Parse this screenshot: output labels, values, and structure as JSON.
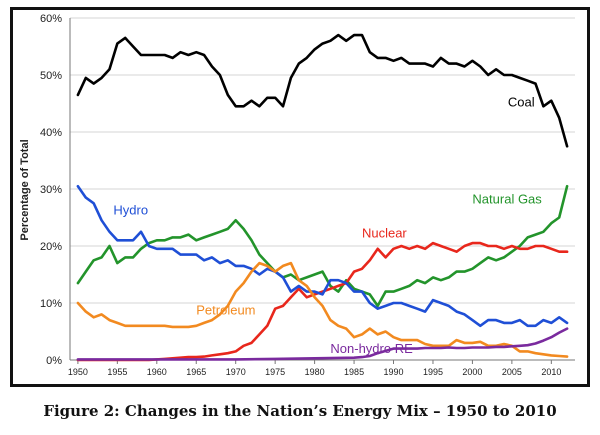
{
  "caption": "Figure 2: Changes in the Nation’s Energy Mix – 1950 to 2010",
  "chart_data": {
    "type": "line",
    "title": "",
    "xlabel": "",
    "ylabel": "Percentage of Total",
    "xlim": [
      1949,
      2013
    ],
    "ylim": [
      0,
      60
    ],
    "x_ticks": [
      1950,
      1955,
      1960,
      1965,
      1970,
      1975,
      1980,
      1985,
      1990,
      1995,
      2000,
      2005,
      2010
    ],
    "y_ticks": [
      0,
      10,
      20,
      30,
      40,
      50,
      60
    ],
    "y_tick_labels": [
      "0%",
      "10%",
      "20%",
      "30%",
      "40%",
      "50%",
      "60%"
    ],
    "grid": "horizontal",
    "legend": "inline labels",
    "series": [
      {
        "name": "Coal",
        "color": "#000000",
        "x": [
          1950,
          1951,
          1952,
          1953,
          1954,
          1955,
          1956,
          1957,
          1958,
          1959,
          1960,
          1961,
          1962,
          1963,
          1964,
          1965,
          1966,
          1967,
          1968,
          1969,
          1970,
          1971,
          1972,
          1973,
          1974,
          1975,
          1976,
          1977,
          1978,
          1979,
          1980,
          1981,
          1982,
          1983,
          1984,
          1985,
          1986,
          1987,
          1988,
          1989,
          1990,
          1991,
          1992,
          1993,
          1994,
          1995,
          1996,
          1997,
          1998,
          1999,
          2000,
          2001,
          2002,
          2003,
          2004,
          2005,
          2006,
          2007,
          2008,
          2009,
          2010,
          2011,
          2012
        ],
        "values": [
          46.5,
          49.5,
          48.5,
          49.5,
          51,
          55.5,
          56.5,
          55,
          53.5,
          53.5,
          53.5,
          53.5,
          53,
          54,
          53.5,
          54,
          53.5,
          51.5,
          50,
          46.5,
          44.5,
          44.5,
          45.5,
          44.5,
          46,
          46,
          44.5,
          49.5,
          52,
          53,
          54.5,
          55.5,
          56,
          57,
          56,
          57,
          57,
          54,
          53,
          53,
          52.5,
          53,
          52,
          52,
          52,
          51.5,
          53,
          52,
          52,
          51.5,
          52.5,
          51.5,
          50,
          51,
          50,
          50,
          49.5,
          49,
          48.5,
          44.5,
          45.5,
          42.5,
          37.5
        ]
      },
      {
        "name": "Natural Gas",
        "color": "#23942b",
        "x": [
          1950,
          1951,
          1952,
          1953,
          1954,
          1955,
          1956,
          1957,
          1958,
          1959,
          1960,
          1961,
          1962,
          1963,
          1964,
          1965,
          1966,
          1967,
          1968,
          1969,
          1970,
          1971,
          1972,
          1973,
          1974,
          1975,
          1976,
          1977,
          1978,
          1979,
          1980,
          1981,
          1982,
          1983,
          1984,
          1985,
          1986,
          1987,
          1988,
          1989,
          1990,
          1991,
          1992,
          1993,
          1994,
          1995,
          1996,
          1997,
          1998,
          1999,
          2000,
          2001,
          2002,
          2003,
          2004,
          2005,
          2006,
          2007,
          2008,
          2009,
          2010,
          2011,
          2012
        ],
        "values": [
          13.5,
          15.5,
          17.5,
          18,
          20,
          17,
          18,
          18,
          19.5,
          20.5,
          21,
          21,
          21.5,
          21.5,
          22,
          21,
          21.5,
          22,
          22.5,
          23,
          24.5,
          23,
          21,
          18.5,
          17,
          15.5,
          14.5,
          15,
          14,
          14.5,
          15,
          15.5,
          13,
          12,
          14,
          12.5,
          12,
          11.5,
          9.5,
          12,
          12,
          12.5,
          13,
          14,
          13.5,
          14.5,
          14,
          14.5,
          15.5,
          15.5,
          16,
          17,
          18,
          17.5,
          18,
          19,
          20,
          21.5,
          22,
          22.5,
          24,
          25,
          30.5
        ]
      },
      {
        "name": "Nuclear",
        "color": "#e8271c",
        "x": [
          1950,
          1955,
          1956,
          1957,
          1958,
          1959,
          1960,
          1961,
          1962,
          1963,
          1964,
          1965,
          1966,
          1967,
          1968,
          1969,
          1970,
          1971,
          1972,
          1973,
          1974,
          1975,
          1976,
          1977,
          1978,
          1979,
          1980,
          1981,
          1982,
          1983,
          1984,
          1985,
          1986,
          1987,
          1988,
          1989,
          1990,
          1991,
          1992,
          1993,
          1994,
          1995,
          1996,
          1997,
          1998,
          1999,
          2000,
          2001,
          2002,
          2003,
          2004,
          2005,
          2006,
          2007,
          2008,
          2009,
          2010,
          2011,
          2012
        ],
        "values": [
          0,
          0,
          0,
          0,
          0,
          0,
          0.1,
          0.2,
          0.3,
          0.4,
          0.5,
          0.5,
          0.6,
          0.8,
          1,
          1.2,
          1.5,
          2.5,
          3,
          4.5,
          6,
          9,
          9.5,
          11,
          12.5,
          11,
          11.5,
          12,
          12.5,
          13,
          13.5,
          15.5,
          16,
          17.5,
          19.5,
          18,
          19.5,
          20,
          19.5,
          20,
          19.5,
          20.5,
          20,
          19.5,
          19,
          20,
          20.5,
          20.5,
          20,
          20,
          19.5,
          20,
          19.5,
          19.5,
          20,
          20,
          19.5,
          19,
          19
        ]
      },
      {
        "name": "Hydro",
        "color": "#1f4fd6",
        "x": [
          1950,
          1951,
          1952,
          1953,
          1954,
          1955,
          1956,
          1957,
          1958,
          1959,
          1960,
          1961,
          1962,
          1963,
          1964,
          1965,
          1966,
          1967,
          1968,
          1969,
          1970,
          1971,
          1972,
          1973,
          1974,
          1975,
          1976,
          1977,
          1978,
          1979,
          1980,
          1981,
          1982,
          1983,
          1984,
          1985,
          1986,
          1987,
          1988,
          1989,
          1990,
          1991,
          1992,
          1993,
          1994,
          1995,
          1996,
          1997,
          1998,
          1999,
          2000,
          2001,
          2002,
          2003,
          2004,
          2005,
          2006,
          2007,
          2008,
          2009,
          2010,
          2011,
          2012
        ],
        "values": [
          30.5,
          28.5,
          27.5,
          24.5,
          22.5,
          21,
          21,
          21,
          22.5,
          20,
          19.5,
          19.5,
          19.5,
          18.5,
          18.5,
          18.5,
          17.5,
          18,
          17,
          17.5,
          16.5,
          16.5,
          16,
          15,
          16,
          15.5,
          14.5,
          12,
          13,
          12,
          12,
          11.5,
          14,
          14,
          13.5,
          12,
          12,
          10,
          9,
          9.5,
          10,
          10,
          9.5,
          9,
          8.5,
          10.5,
          10,
          9.5,
          8.5,
          8,
          7,
          6,
          7,
          7,
          6.5,
          6.5,
          7,
          6,
          6,
          7,
          6.5,
          7.5,
          6.5
        ]
      },
      {
        "name": "Petroleum",
        "color": "#f28a20",
        "x": [
          1950,
          1951,
          1952,
          1953,
          1954,
          1955,
          1956,
          1957,
          1958,
          1959,
          1960,
          1961,
          1962,
          1963,
          1964,
          1965,
          1966,
          1967,
          1968,
          1969,
          1970,
          1971,
          1972,
          1973,
          1974,
          1975,
          1976,
          1977,
          1978,
          1979,
          1980,
          1981,
          1982,
          1983,
          1984,
          1985,
          1986,
          1987,
          1988,
          1989,
          1990,
          1991,
          1992,
          1993,
          1994,
          1995,
          1996,
          1997,
          1998,
          1999,
          2000,
          2001,
          2002,
          2003,
          2004,
          2005,
          2006,
          2007,
          2008,
          2009,
          2010,
          2011,
          2012
        ],
        "values": [
          10,
          8.5,
          7.5,
          8,
          7,
          6.5,
          6,
          6,
          6,
          6,
          6,
          6,
          5.8,
          5.8,
          5.8,
          6,
          6.5,
          7,
          8,
          9.5,
          12,
          13.5,
          15.5,
          17,
          16.5,
          15.5,
          16.5,
          17,
          14,
          13,
          11,
          9.5,
          7,
          6,
          5.5,
          4,
          4.5,
          5.5,
          4.5,
          5,
          4,
          3.5,
          3.5,
          3.5,
          2.8,
          2.5,
          2.5,
          2.5,
          3.5,
          3,
          3,
          3.2,
          2.5,
          2.5,
          2.8,
          2.5,
          1.5,
          1.5,
          1.2,
          1,
          0.8,
          0.7,
          0.6
        ]
      },
      {
        "name": "Non-hydro RE",
        "color": "#7a2a9e",
        "x": [
          1950,
          1970,
          1975,
          1980,
          1985,
          1986,
          1987,
          1988,
          1989,
          1990,
          1991,
          1992,
          1993,
          1994,
          1995,
          1996,
          1997,
          1998,
          1999,
          2000,
          2001,
          2002,
          2003,
          2004,
          2005,
          2006,
          2007,
          2008,
          2009,
          2010,
          2011,
          2012
        ],
        "values": [
          0.1,
          0.1,
          0.2,
          0.3,
          0.4,
          0.5,
          0.7,
          1.2,
          1.6,
          2,
          2,
          2,
          2,
          2.1,
          2.1,
          2.1,
          2.2,
          2.1,
          2.1,
          2.2,
          2.2,
          2.2,
          2.3,
          2.3,
          2.4,
          2.5,
          2.6,
          2.9,
          3.4,
          4,
          4.8,
          5.5
        ]
      }
    ],
    "annotations": [
      {
        "text": "Coal",
        "x": 2004.5,
        "y": 44.5,
        "color": "#000000"
      },
      {
        "text": "Natural Gas",
        "x": 2000,
        "y": 27.5,
        "color": "#23942b"
      },
      {
        "text": "Nuclear",
        "x": 1986,
        "y": 21.5,
        "color": "#e8271c"
      },
      {
        "text": "Hydro",
        "x": 1954.5,
        "y": 25.5,
        "color": "#1f4fd6"
      },
      {
        "text": "Petroleum",
        "x": 1965,
        "y": 8,
        "color": "#f28a20"
      },
      {
        "text": "Non-hydro RE",
        "x": 1982,
        "y": 1.2,
        "color": "#7a2a9e"
      }
    ]
  }
}
